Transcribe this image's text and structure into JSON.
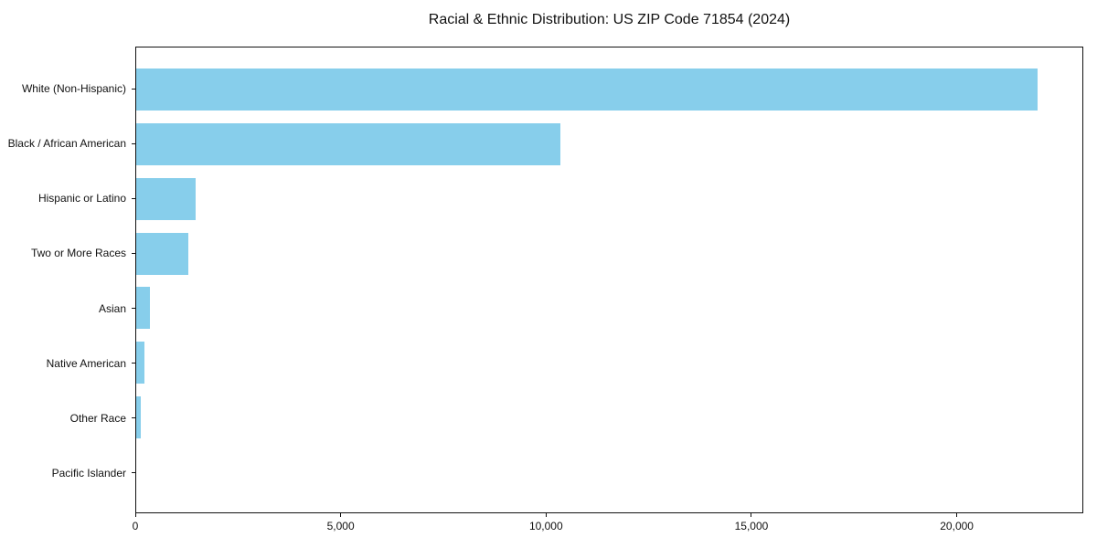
{
  "figure": {
    "background_color": "#ffffff",
    "spine_color": "#111111",
    "text_color": "#111111"
  },
  "chart_data": {
    "type": "bar",
    "orientation": "horizontal",
    "title": "Racial & Ethnic Distribution: US ZIP Code 71854 (2024)",
    "xlabel": "",
    "ylabel": "",
    "categories": [
      "White (Non-Hispanic)",
      "Black / African American",
      "Hispanic or Latino",
      "Two or More Races",
      "Asian",
      "Native American",
      "Other Race",
      "Pacific Islander"
    ],
    "values": [
      21980,
      10340,
      1440,
      1270,
      330,
      200,
      110,
      0
    ],
    "xlim": [
      0,
      23080
    ],
    "xticks": [
      {
        "value": 0,
        "label": "0"
      },
      {
        "value": 5000,
        "label": "5,000"
      },
      {
        "value": 10000,
        "label": "10,000"
      },
      {
        "value": 15000,
        "label": "15,000"
      },
      {
        "value": 20000,
        "label": "20,000"
      }
    ],
    "bar_color": "#87CEEB",
    "grid": false,
    "legend_position": "none"
  }
}
